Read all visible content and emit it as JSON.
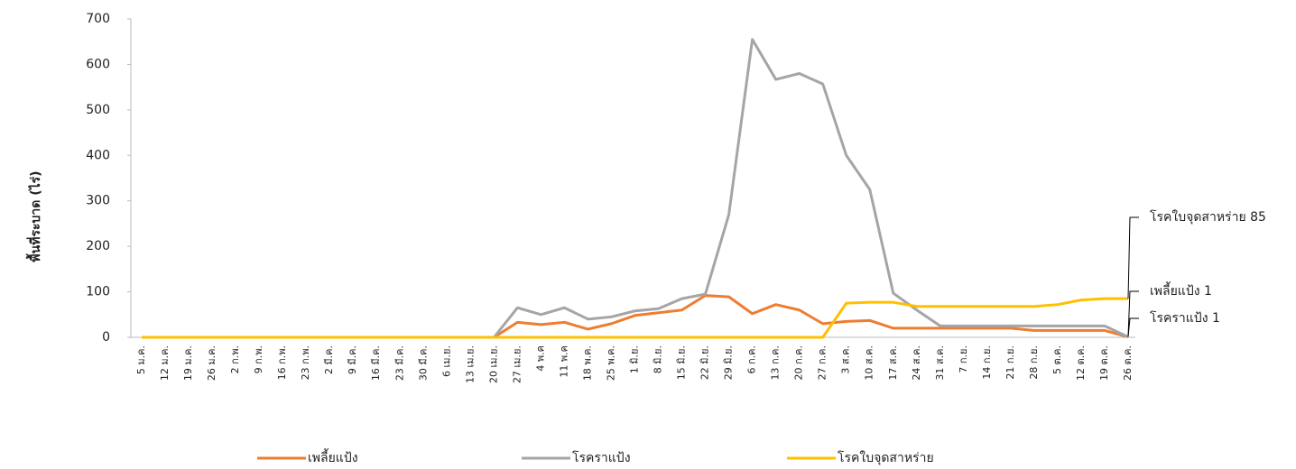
{
  "chart_data": {
    "type": "line",
    "y_label": "พื้นที่ระบาด (ไร่)",
    "categories": [
      "5 ม.ค.",
      "12 ม.ค.",
      "19 ม.ค.",
      "26 ม.ค.",
      "2 ก.พ.",
      "9 ก.พ.",
      "16 ก.พ.",
      "23 ก.พ.",
      "2 มี.ค.",
      "9 มี.ค.",
      "16 มี.ค.",
      "23 มี.ค.",
      "30 มี.ค.",
      "6 เม.ย.",
      "13 เม.ย.",
      "20 เม.ย.",
      "27 เม.ย.",
      "4 พ.ค",
      "11 พ.ค",
      "18 พ.ค.",
      "25 พ.ค.",
      "1 มิ.ย.",
      "8 มิ.ย.",
      "15 มิ.ย.",
      "22 มิ.ย.",
      "29 มิ.ย.",
      "6 ก.ค.",
      "13 ก.ค.",
      "20 ก.ค.",
      "27 ก.ค.",
      "3 ส.ค.",
      "10 ส.ค.",
      "17 ส.ค.",
      "24 ส.ค.",
      "31 ส.ค.",
      "7 ก.ย.",
      "14 ก.ย.",
      "21 ก.ย.",
      "28 ก.ย.",
      "5 ต.ค.",
      "12 ต.ค.",
      "19 ต.ค.",
      "26 ต.ค."
    ],
    "series": [
      {
        "name": "เพลี้ยแป้ง",
        "color": "#ed7d31",
        "end_label": "เพลี้ยแป้ง 1",
        "values": [
          0,
          0,
          0,
          0,
          0,
          0,
          0,
          0,
          0,
          0,
          0,
          0,
          0,
          0,
          0,
          0,
          33,
          28,
          33,
          18,
          30,
          48,
          54,
          60,
          92,
          89,
          52,
          72,
          60,
          30,
          35,
          37,
          20,
          20,
          20,
          20,
          20,
          20,
          15,
          15,
          15,
          15,
          1
        ]
      },
      {
        "name": "โรคราแป้ง",
        "color": "#a5a5a5",
        "end_label": "โรคราแป้ง 1",
        "values": [
          0,
          0,
          0,
          0,
          0,
          0,
          0,
          0,
          0,
          0,
          0,
          0,
          0,
          0,
          0,
          0,
          65,
          50,
          65,
          40,
          45,
          58,
          63,
          85,
          95,
          270,
          655,
          567,
          580,
          557,
          400,
          325,
          97,
          60,
          25,
          25,
          25,
          25,
          25,
          25,
          25,
          25,
          1
        ]
      },
      {
        "name": "โรคใบจุดสาหร่าย",
        "color": "#ffc000",
        "end_label": "โรคใบจุดสาหร่าย 85",
        "values": [
          0,
          0,
          0,
          0,
          0,
          0,
          0,
          0,
          0,
          0,
          0,
          0,
          0,
          0,
          0,
          0,
          0,
          0,
          0,
          0,
          0,
          0,
          0,
          0,
          0,
          0,
          0,
          0,
          0,
          0,
          75,
          77,
          77,
          68,
          68,
          68,
          68,
          68,
          68,
          72,
          82,
          85,
          85
        ]
      }
    ],
    "ylim": [
      0,
      700
    ],
    "yticks": [
      0,
      100,
      200,
      300,
      400,
      500,
      600,
      700
    ],
    "grid": false,
    "legend": "bottom"
  }
}
